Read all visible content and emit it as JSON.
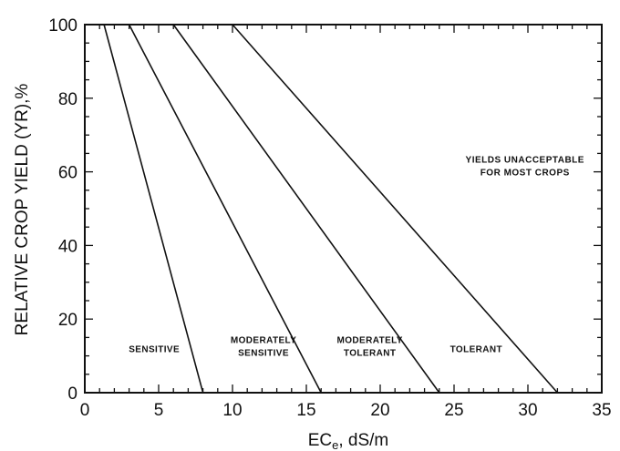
{
  "chart_data": {
    "type": "line",
    "xlabel": "ECe, dS/m",
    "xlabel_main": "EC",
    "xlabel_sub": "e",
    "xlabel_rest": ", dS/m",
    "ylabel": "RELATIVE CROP YIELD (YR),%",
    "xlim": [
      0,
      35
    ],
    "ylim": [
      0,
      100
    ],
    "xticks": [
      0,
      5,
      10,
      15,
      20,
      25,
      30,
      35
    ],
    "yticks": [
      0,
      20,
      40,
      60,
      80,
      100
    ],
    "grid": false,
    "series": [
      {
        "x": [
          1.3,
          8
        ],
        "y": [
          100,
          0
        ]
      },
      {
        "x": [
          3,
          16
        ],
        "y": [
          100,
          0
        ]
      },
      {
        "x": [
          6,
          24
        ],
        "y": [
          100,
          0
        ]
      },
      {
        "x": [
          10,
          32
        ],
        "y": [
          100,
          0
        ]
      }
    ],
    "zone_labels": [
      {
        "lines": [
          "SENSITIVE"
        ],
        "x": 4.7,
        "y": 12
      },
      {
        "lines": [
          "MODERATELY",
          "SENSITIVE"
        ],
        "x": 12.1,
        "y": 12
      },
      {
        "lines": [
          "MODERATELY",
          "TOLERANT"
        ],
        "x": 19.3,
        "y": 12
      },
      {
        "lines": [
          "TOLERANT"
        ],
        "x": 26.5,
        "y": 12
      }
    ],
    "annotation": {
      "lines": [
        "YIELDS UNACCEPTABLE",
        "FOR MOST CROPS"
      ],
      "x": 29.8,
      "y": 62
    }
  }
}
